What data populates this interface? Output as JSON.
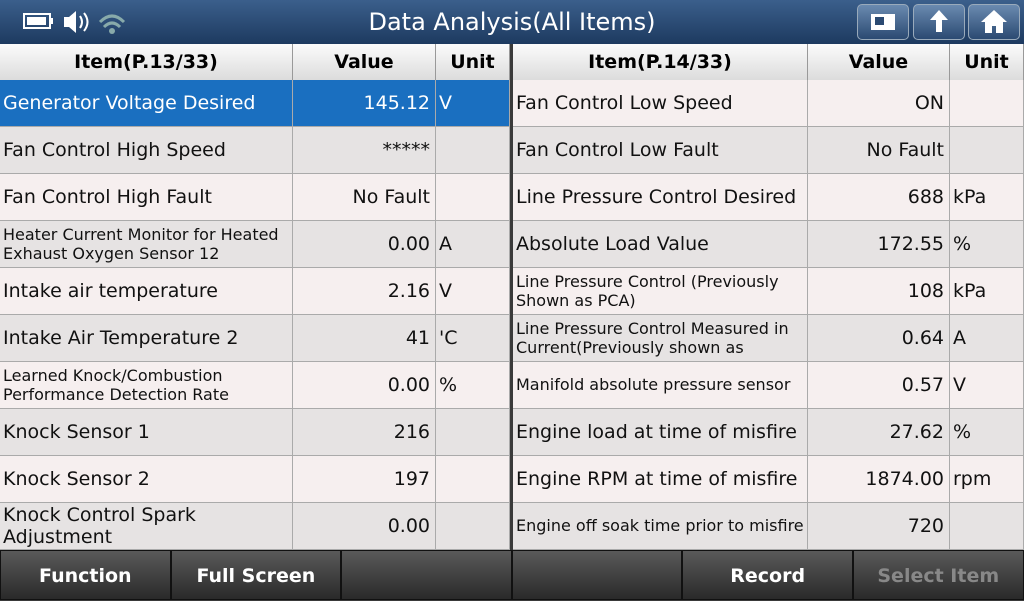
{
  "header": {
    "title": "Data Analysis(All Items)"
  },
  "left_table": {
    "headers": [
      "Item(P.13/33)",
      "Value",
      "Unit"
    ],
    "rows": [
      {
        "item": "Generator Voltage Desired",
        "value": "145.12",
        "unit": "V"
      },
      {
        "item": "Fan Control High Speed",
        "value": "*****"
      },
      {
        "item": "Fan Control High Fault",
        "value": "No Fault"
      },
      {
        "item": "Heater Current Monitor for Heated Exhaust Oxygen Sensor 12",
        "value": "0.00",
        "unit": "A"
      },
      {
        "item": "Intake air temperature",
        "value": "2.16",
        "unit": "V"
      },
      {
        "item": "Intake Air Temperature 2",
        "value": "41",
        "unit": "'C"
      },
      {
        "item": "Learned Knock/Combustion Performance Detection Rate",
        "value": "0.00",
        "unit": "%"
      },
      {
        "item": "Knock Sensor 1",
        "value": "216"
      },
      {
        "item": "Knock Sensor 2",
        "value": "197"
      },
      {
        "item": "Knock Control Spark Adjustment",
        "value": "0.00"
      }
    ]
  },
  "right_table": {
    "headers": [
      "Item(P.14/33)",
      "Value",
      "Unit"
    ],
    "rows": [
      {
        "item": "Fan Control Low Speed",
        "value": "ON"
      },
      {
        "item": "Fan Control Low Fault",
        "value": "No Fault"
      },
      {
        "item": "Line Pressure Control Desired",
        "value": "688",
        "unit": "kPa"
      },
      {
        "item": "Absolute Load Value",
        "value": "172.55",
        "unit": "%"
      },
      {
        "item": "Line Pressure Control (Previously Shown as PCA)",
        "value": "108",
        "unit": "kPa"
      },
      {
        "item": "Line Pressure Control Measured in Current(Previously shown as",
        "value": "0.64",
        "unit": "A"
      },
      {
        "item": "Manifold absolute pressure sensor",
        "value": "0.57",
        "unit": "V"
      },
      {
        "item": "Engine load at time of misfire",
        "value": "27.62",
        "unit": "%"
      },
      {
        "item": "Engine RPM at time of misfire",
        "value": "1874.00",
        "unit": "rpm"
      },
      {
        "item": "Engine off soak time prior to misfire",
        "value": "720"
      }
    ]
  },
  "footer": {
    "buttons": [
      "Function",
      "Full Screen",
      "Record",
      "Select Item"
    ]
  }
}
